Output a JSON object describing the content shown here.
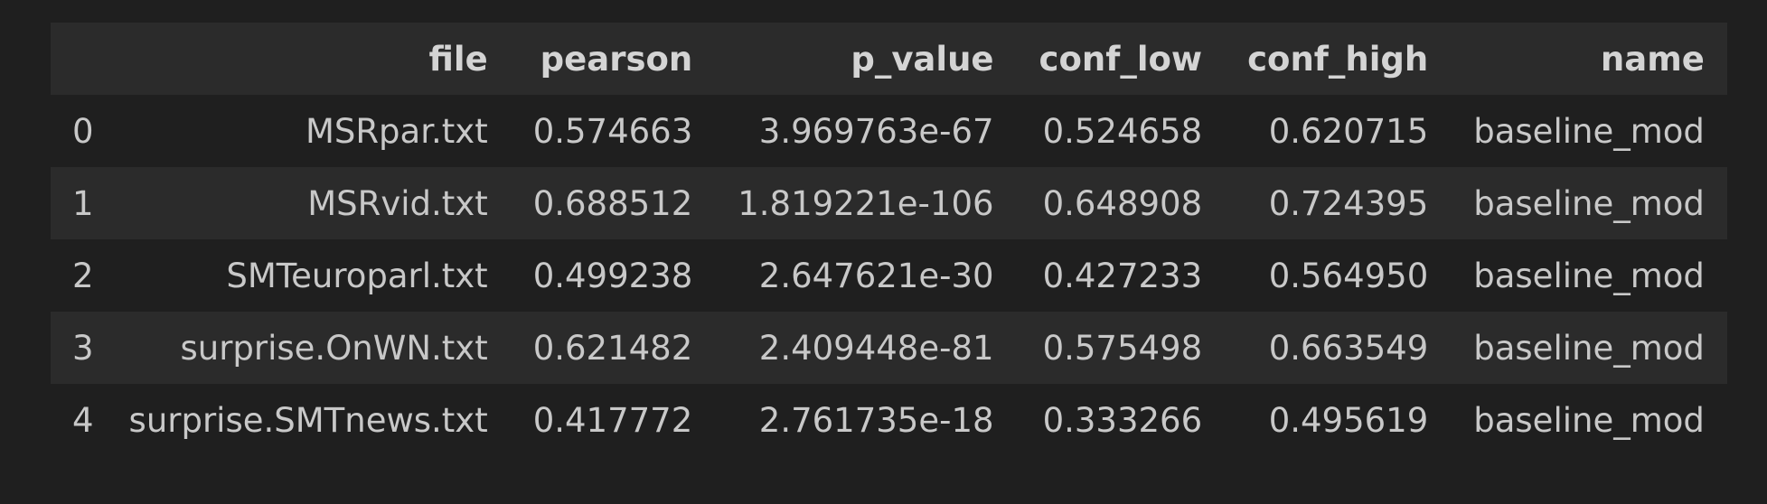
{
  "table": {
    "index_header": "",
    "columns": [
      "file",
      "pearson",
      "p_value",
      "conf_low",
      "conf_high",
      "name"
    ],
    "rows": [
      {
        "index": "0",
        "file": "MSRpar.txt",
        "pearson": "0.574663",
        "p_value": "3.969763e-67",
        "conf_low": "0.524658",
        "conf_high": "0.620715",
        "name": "baseline_mod"
      },
      {
        "index": "1",
        "file": "MSRvid.txt",
        "pearson": "0.688512",
        "p_value": "1.819221e-106",
        "conf_low": "0.648908",
        "conf_high": "0.724395",
        "name": "baseline_mod"
      },
      {
        "index": "2",
        "file": "SMTeuroparl.txt",
        "pearson": "0.499238",
        "p_value": "2.647621e-30",
        "conf_low": "0.427233",
        "conf_high": "0.564950",
        "name": "baseline_mod"
      },
      {
        "index": "3",
        "file": "surprise.OnWN.txt",
        "pearson": "0.621482",
        "p_value": "2.409448e-81",
        "conf_low": "0.575498",
        "conf_high": "0.663549",
        "name": "baseline_mod"
      },
      {
        "index": "4",
        "file": "surprise.SMTnews.txt",
        "pearson": "0.417772",
        "p_value": "2.761735e-18",
        "conf_low": "0.333266",
        "conf_high": "0.495619",
        "name": "baseline_mod"
      }
    ]
  },
  "colors": {
    "background": "#1f1f1f",
    "header_row": "#2b2b2b",
    "striped_row": "#2b2b2b",
    "text": "#c8c8c8"
  }
}
